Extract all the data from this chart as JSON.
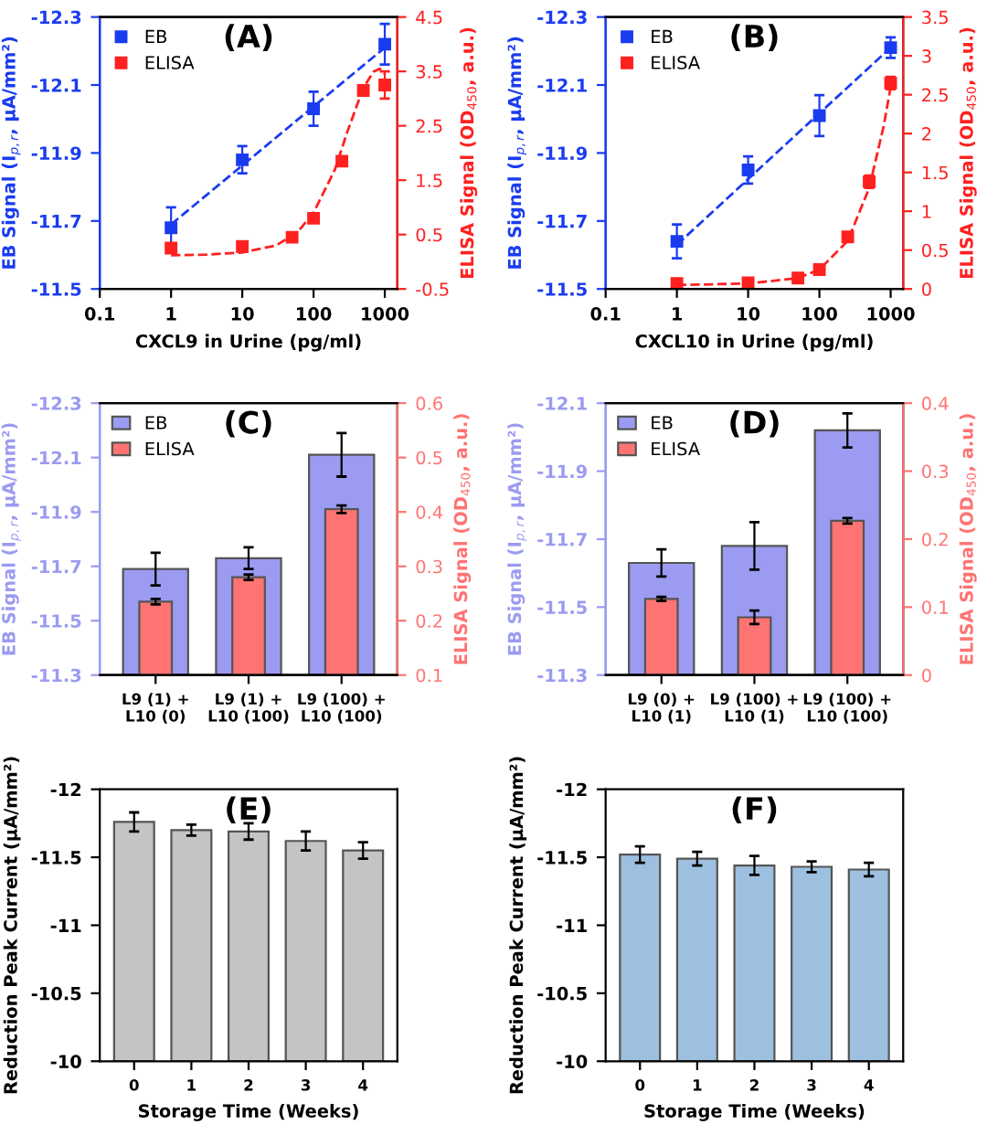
{
  "chart_data": [
    {
      "type": "scatter",
      "title": "(A)",
      "xlabel": "CXCL9 in Urine (pg/ml)",
      "ylabel": "EB Signal (I$_{p,r}$, μA/mm²)",
      "y2label": "ELISA Signal (OD$_{450}$, a.u.)",
      "log": "x",
      "xlim": [
        0.1,
        1500
      ],
      "xticks": [
        0.1,
        1,
        10,
        100,
        1000
      ],
      "ylim": [
        -11.5,
        -12.3
      ],
      "yticks": [
        -11.5,
        -11.7,
        -11.9,
        -12.1,
        -12.3
      ],
      "y2lim": [
        -0.5,
        4.5
      ],
      "y2ticks": [
        -0.5,
        0.5,
        1.5,
        2.5,
        3.5,
        4.5
      ],
      "legend": "top left",
      "grid": false,
      "series": [
        {
          "name": "EB",
          "marker": "square",
          "color": "#1a3cf0",
          "x": [
            1,
            10,
            100,
            1000
          ],
          "values": [
            -11.68,
            -11.88,
            -12.03,
            -12.22
          ],
          "errors": [
            0.06,
            0.04,
            0.05,
            0.06
          ]
        },
        {
          "type": "line",
          "line_style": "dashed",
          "color": "#1a3cf0",
          "x": [
            1,
            1000
          ],
          "values": [
            -11.69,
            -12.21
          ]
        },
        {
          "name": "ELISA",
          "marker": "square",
          "axis": "y2",
          "color": "#ff2020",
          "x": [
            1,
            10,
            50,
            100,
            250,
            500,
            1000
          ],
          "values": [
            0.25,
            0.28,
            0.45,
            0.8,
            1.85,
            3.15,
            3.25
          ],
          "errors": [
            0.05,
            0.05,
            0.05,
            0.07,
            0.05,
            0.05,
            0.25
          ]
        },
        {
          "type": "line",
          "axis": "y2",
          "line_style": "dashed",
          "color": "#ff2020",
          "x": [
            1,
            3,
            10,
            30,
            60,
            100,
            200,
            300,
            500,
            700,
            850,
            1000
          ],
          "values": [
            0.12,
            0.13,
            0.17,
            0.3,
            0.55,
            0.9,
            1.7,
            2.4,
            3.2,
            3.5,
            3.55,
            3.45
          ]
        }
      ]
    },
    {
      "type": "scatter",
      "title": "(B)",
      "xlabel": "CXCL10 in Urine (pg/ml)",
      "ylabel": "EB Signal (I$_{p,r}$, μA/mm²)",
      "y2label": "ELISA Signal (OD$_{450}$, a.u.)",
      "log": "x",
      "xlim": [
        0.1,
        1500
      ],
      "xticks": [
        0.1,
        1,
        10,
        100,
        1000
      ],
      "ylim": [
        -11.5,
        -12.3
      ],
      "yticks": [
        -11.5,
        -11.7,
        -11.9,
        -12.1,
        -12.3
      ],
      "y2lim": [
        0,
        3.5
      ],
      "y2ticks": [
        0,
        0.5,
        1,
        1.5,
        2,
        2.5,
        3,
        3.5
      ],
      "legend": "top left",
      "grid": false,
      "series": [
        {
          "name": "EB",
          "marker": "square",
          "color": "#1a3cf0",
          "x": [
            1,
            10,
            100,
            1000
          ],
          "values": [
            -11.64,
            -11.85,
            -12.01,
            -12.21
          ],
          "errors": [
            0.05,
            0.04,
            0.06,
            0.03
          ]
        },
        {
          "type": "line",
          "line_style": "dashed",
          "color": "#1a3cf0",
          "x": [
            1,
            1000
          ],
          "values": [
            -11.63,
            -12.21
          ]
        },
        {
          "name": "ELISA",
          "marker": "square",
          "axis": "y2",
          "color": "#ff2020",
          "x": [
            1,
            10,
            50,
            100,
            250,
            500,
            1000
          ],
          "values": [
            0.07,
            0.08,
            0.14,
            0.25,
            0.67,
            1.38,
            2.65
          ],
          "errors": [
            0.02,
            0.02,
            0.02,
            0.03,
            0.03,
            0.08,
            0.08
          ]
        },
        {
          "type": "line",
          "axis": "y2",
          "line_style": "dashed",
          "color": "#ff2020",
          "x": [
            1,
            10,
            50,
            100,
            250,
            500,
            800,
            1000
          ],
          "values": [
            0.05,
            0.07,
            0.14,
            0.25,
            0.62,
            1.3,
            2.1,
            2.6
          ]
        }
      ]
    },
    {
      "type": "bar",
      "title": "(C)",
      "categories": [
        "L9 (1) +\nL10 (0)",
        "L9 (1) +\nL10 (100)",
        "L9 (100) +\nL10 (100)"
      ],
      "ylabel": "EB Signal (I$_{p,r}$, μA/mm²)",
      "y2label": "ELISA Signal (OD$_{450}$, a.u.)",
      "ylim": [
        -11.3,
        -12.3
      ],
      "yticks": [
        -11.3,
        -11.5,
        -11.7,
        -11.9,
        -12.1,
        -12.3
      ],
      "y2lim": [
        0.1,
        0.6
      ],
      "y2ticks": [
        0.1,
        0.2,
        0.3,
        0.4,
        0.5,
        0.6
      ],
      "legend": "top left",
      "grid": false,
      "series": [
        {
          "name": "EB",
          "color": "#9b9bf2",
          "values": [
            -11.69,
            -11.73,
            -12.11
          ],
          "errors": [
            0.06,
            0.04,
            0.08
          ]
        },
        {
          "name": "ELISA",
          "axis": "y2",
          "color": "#ff7373",
          "values": [
            0.235,
            0.28,
            0.405
          ],
          "errors": [
            0.005,
            0.005,
            0.007
          ]
        }
      ]
    },
    {
      "type": "bar",
      "title": "(D)",
      "categories": [
        "L9 (0) +\nL10 (1)",
        "L9 (100) +\nL10 (1)",
        "L9 (100) +\nL10 (100)"
      ],
      "ylabel": "EB Signal (I$_{p,r}$, μA/mm²)",
      "y2label": "ELISA Signal (OD$_{450}$, a.u.)",
      "ylim": [
        -11.3,
        -12.1
      ],
      "yticks": [
        -11.3,
        -11.5,
        -11.7,
        -11.9,
        -12.1
      ],
      "y2lim": [
        0,
        0.4
      ],
      "y2ticks": [
        0,
        0.1,
        0.2,
        0.3,
        0.4
      ],
      "legend": "top left",
      "grid": false,
      "series": [
        {
          "name": "EB",
          "color": "#9b9bf2",
          "values": [
            -11.63,
            -11.68,
            -12.02
          ],
          "errors": [
            0.04,
            0.07,
            0.05
          ]
        },
        {
          "name": "ELISA",
          "axis": "y2",
          "color": "#ff7373",
          "values": [
            0.112,
            0.085,
            0.227
          ],
          "errors": [
            0.003,
            0.01,
            0.004
          ]
        }
      ]
    },
    {
      "type": "bar",
      "title": "(E)",
      "categories": [
        "0",
        "1",
        "2",
        "3",
        "4"
      ],
      "xlabel": "Storage Time (Weeks)",
      "ylabel": "Reduction Peak Current (μA/mm²)",
      "ylim": [
        -10,
        -12
      ],
      "yticks": [
        -10,
        -10.5,
        -11,
        -11.5,
        -12
      ],
      "grid": false,
      "series": [
        {
          "color": "#c4c4c4",
          "values": [
            -11.76,
            -11.7,
            -11.69,
            -11.62,
            -11.55
          ],
          "errors": [
            0.07,
            0.04,
            0.06,
            0.07,
            0.06
          ]
        }
      ]
    },
    {
      "type": "bar",
      "title": "(F)",
      "categories": [
        "0",
        "1",
        "2",
        "3",
        "4"
      ],
      "xlabel": "Storage Time (Weeks)",
      "ylabel": "Reduction Peak Current (μA/mm²)",
      "ylim": [
        -10,
        -12
      ],
      "yticks": [
        -10,
        -10.5,
        -11,
        -11.5,
        -12
      ],
      "grid": false,
      "series": [
        {
          "color": "#9ec0e0",
          "values": [
            -11.52,
            -11.49,
            -11.44,
            -11.43,
            -11.41
          ],
          "errors": [
            0.06,
            0.05,
            0.07,
            0.04,
            0.05
          ]
        }
      ]
    }
  ]
}
